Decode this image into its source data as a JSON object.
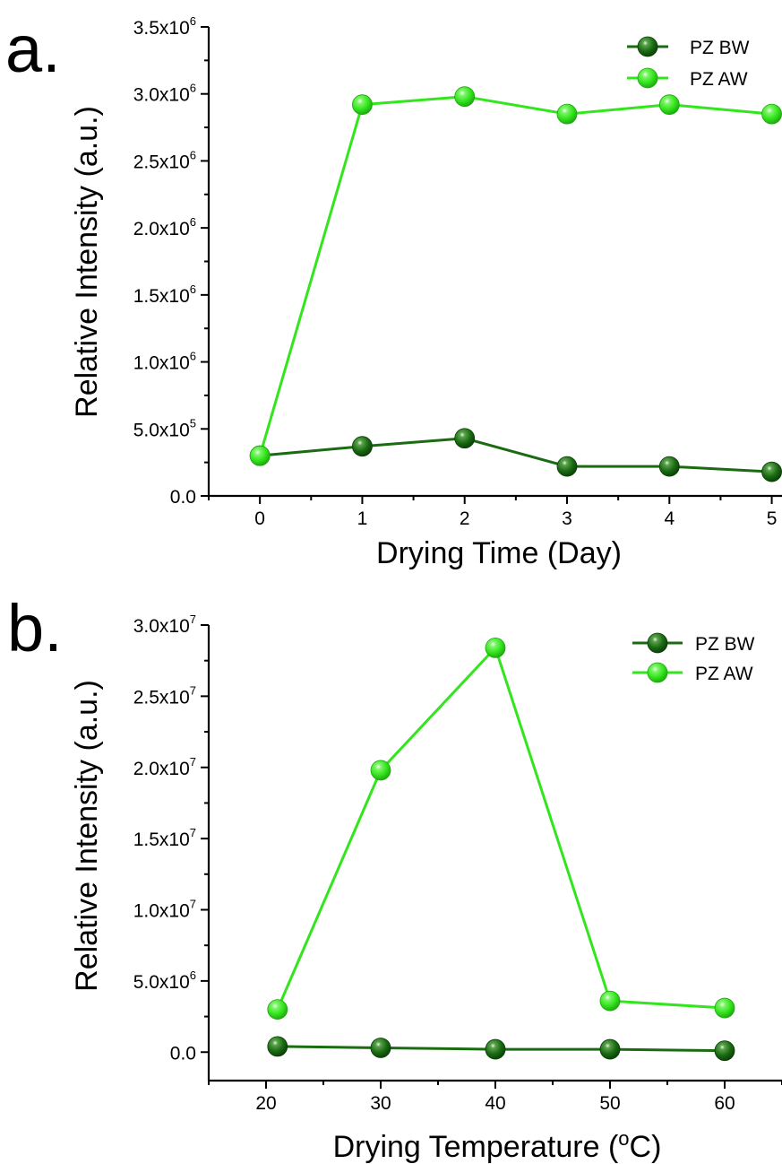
{
  "chart_data": [
    {
      "type": "line",
      "panel_label": "a.",
      "xlabel": "Drying Time (Day)",
      "ylabel": "Relative Intensity (a.u.)",
      "xlim": [
        -0.5,
        5.1
      ],
      "ylim": [
        0,
        3500000
      ],
      "x_ticks": [
        0,
        1,
        2,
        3,
        4,
        5
      ],
      "x_tick_labels": [
        "0",
        "1",
        "2",
        "3",
        "4",
        "5"
      ],
      "y_tick_labels": [
        {
          "value": 0,
          "mantissa": "0.0",
          "exp": ""
        },
        {
          "value": 500000,
          "mantissa": "5.0x10",
          "exp": "5"
        },
        {
          "value": 1000000,
          "mantissa": "1.0x10",
          "exp": "6"
        },
        {
          "value": 1500000,
          "mantissa": "1.5x10",
          "exp": "6"
        },
        {
          "value": 2000000,
          "mantissa": "2.0x10",
          "exp": "6"
        },
        {
          "value": 2500000,
          "mantissa": "2.5x10",
          "exp": "6"
        },
        {
          "value": 3000000,
          "mantissa": "3.0x10",
          "exp": "6"
        },
        {
          "value": 3500000,
          "mantissa": "3.5x10",
          "exp": "6"
        }
      ],
      "legend_position": "top-right",
      "series": [
        {
          "name": "PZ BW",
          "color": "#1a6b12",
          "x": [
            0,
            1,
            2,
            3,
            4,
            5
          ],
          "values": [
            300000,
            370000,
            430000,
            220000,
            220000,
            180000
          ]
        },
        {
          "name": "PZ AW",
          "color": "#33e51d",
          "x": [
            0,
            1,
            2,
            3,
            4,
            5
          ],
          "values": [
            300000,
            2920000,
            2980000,
            2850000,
            2920000,
            2850000
          ]
        }
      ]
    },
    {
      "type": "line",
      "panel_label": "b.",
      "xlabel": "Drying Temperature (",
      "xlabel_sup": "o",
      "xlabel_suffix": "C)",
      "ylabel": "Relative Intensity (a.u.)",
      "xlim": [
        15,
        65
      ],
      "ylim": [
        -2000000,
        30000000
      ],
      "x_ticks": [
        20,
        30,
        40,
        50,
        60
      ],
      "x_tick_labels": [
        "20",
        "30",
        "40",
        "50",
        "60"
      ],
      "y_tick_labels": [
        {
          "value": 0,
          "mantissa": "0.0",
          "exp": ""
        },
        {
          "value": 5000000,
          "mantissa": "5.0x10",
          "exp": "6"
        },
        {
          "value": 10000000,
          "mantissa": "1.0x10",
          "exp": "7"
        },
        {
          "value": 15000000,
          "mantissa": "1.5x10",
          "exp": "7"
        },
        {
          "value": 20000000,
          "mantissa": "2.0x10",
          "exp": "7"
        },
        {
          "value": 25000000,
          "mantissa": "2.5x10",
          "exp": "7"
        },
        {
          "value": 30000000,
          "mantissa": "3.0x10",
          "exp": "7"
        }
      ],
      "legend_position": "top-right",
      "series": [
        {
          "name": "PZ BW",
          "color": "#1a6b12",
          "x": [
            21,
            30,
            40,
            50,
            60
          ],
          "values": [
            400000,
            300000,
            200000,
            200000,
            100000
          ]
        },
        {
          "name": "PZ AW",
          "color": "#33e51d",
          "x": [
            21,
            30,
            40,
            50,
            60
          ],
          "values": [
            3000000,
            19800000,
            28400000,
            3600000,
            3100000
          ]
        }
      ]
    }
  ]
}
